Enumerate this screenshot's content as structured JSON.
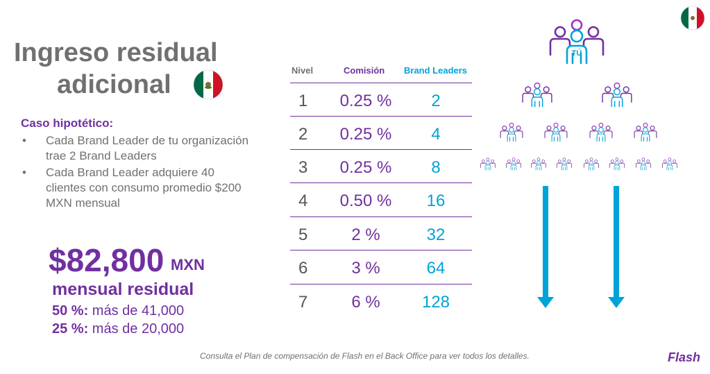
{
  "title": {
    "line1": "Ingreso residual",
    "line2": "adicional"
  },
  "flags": {
    "title_flag": "mexico-flag-icon",
    "corner_flag": "mexico-flag-icon"
  },
  "caso": {
    "heading": "Caso hipotético:",
    "bullets": [
      {
        "marker": "•",
        "text": "Cada Brand Leader de tu organización trae 2 Brand Leaders"
      },
      {
        "marker": "•",
        "text": "Cada Brand Leader adquiere 40 clientes con consumo promedio $200 MXN mensual"
      }
    ]
  },
  "income": {
    "amount": "$82,800",
    "currency": "MXN",
    "label": "mensual residual",
    "lines": [
      {
        "pct": "50 %:",
        "text": " más de 41,000"
      },
      {
        "pct": "25 %:",
        "text": " más de 20,000"
      }
    ]
  },
  "table": {
    "headers": {
      "nivel": "Nivel",
      "comision": "Comisión",
      "brand_leaders": "Brand Leaders"
    },
    "rows": [
      {
        "nivel": "1",
        "comision": "0.25 %",
        "brand_leaders": "2"
      },
      {
        "nivel": "2",
        "comision": "0.25 %",
        "brand_leaders": "4"
      },
      {
        "nivel": "3",
        "comision": "0.25 %",
        "brand_leaders": "8"
      },
      {
        "nivel": "4",
        "comision": "0.50 %",
        "brand_leaders": "16"
      },
      {
        "nivel": "5",
        "comision": "2 %",
        "brand_leaders": "32"
      },
      {
        "nivel": "6",
        "comision": "3 %",
        "brand_leaders": "64"
      },
      {
        "nivel": "7",
        "comision": "6 %",
        "brand_leaders": "128"
      }
    ]
  },
  "diagram": {
    "top_label": "TÚ",
    "icon": "people-group-icon",
    "levels": [
      1,
      2,
      4,
      8
    ],
    "arrows": 2,
    "colors": {
      "purple": "#7030a0",
      "blue": "#00a3d9",
      "violet": "#a22ec8"
    }
  },
  "footer": {
    "text": "Consulta el Plan de compensación de Flash en el Back Office para ver todos los detalles.",
    "logo": "Flash"
  }
}
